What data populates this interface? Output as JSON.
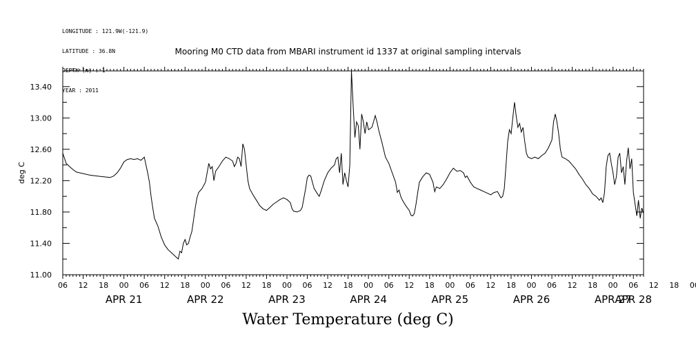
{
  "header": {
    "longitude": "LONGITUDE : 121.9W(-121.9)",
    "latitude": "LATITUDE : 36.8N",
    "depth": "DEPTH (m) : 1",
    "year": "YEAR : 2011"
  },
  "chart_data": {
    "type": "line",
    "title": "Mooring M0 CTD data from MBARI instrument id 1337 at original sampling intervals",
    "xlabel": "Water Temperature (deg C)",
    "ylabel": "deg C",
    "ylim": [
      11.0,
      13.6
    ],
    "xlim_hours": [
      0,
      171
    ],
    "y_ticks": [
      "11.00",
      "11.40",
      "11.80",
      "12.20",
      "12.60",
      "13.00",
      "13.40"
    ],
    "hour_ticks": [
      "06",
      "12",
      "18",
      "00",
      "06",
      "12",
      "18",
      "00",
      "06",
      "12",
      "18",
      "00",
      "06",
      "12",
      "18",
      "00",
      "06",
      "12",
      "18",
      "00",
      "06",
      "12",
      "18",
      "00",
      "06",
      "12",
      "18",
      "00",
      "06",
      "12",
      "18",
      "00"
    ],
    "day_labels": [
      "APR 21",
      "APR 22",
      "APR 23",
      "APR 24",
      "APR 25",
      "APR 26",
      "APR 27",
      "APR 28"
    ],
    "series": [
      {
        "points": [
          [
            0,
            12.55
          ],
          [
            1,
            12.42
          ],
          [
            2,
            12.38
          ],
          [
            3,
            12.34
          ],
          [
            4,
            12.31
          ],
          [
            5,
            12.3
          ],
          [
            6,
            12.29
          ],
          [
            8,
            12.27
          ],
          [
            10,
            12.26
          ],
          [
            12,
            12.25
          ],
          [
            14,
            12.24
          ],
          [
            15,
            12.26
          ],
          [
            16,
            12.3
          ],
          [
            17,
            12.36
          ],
          [
            18,
            12.44
          ],
          [
            19,
            12.47
          ],
          [
            20,
            12.48
          ],
          [
            21,
            12.47
          ],
          [
            22,
            12.48
          ],
          [
            23,
            12.46
          ],
          [
            24,
            12.5
          ],
          [
            24.5,
            12.4
          ],
          [
            25,
            12.3
          ],
          [
            25.5,
            12.18
          ],
          [
            26,
            12.0
          ],
          [
            26.5,
            11.85
          ],
          [
            27,
            11.72
          ],
          [
            28,
            11.62
          ],
          [
            29,
            11.48
          ],
          [
            30,
            11.38
          ],
          [
            31,
            11.32
          ],
          [
            32,
            11.28
          ],
          [
            33,
            11.24
          ],
          [
            34,
            11.2
          ],
          [
            34.5,
            11.3
          ],
          [
            35,
            11.28
          ],
          [
            35.5,
            11.4
          ],
          [
            36,
            11.45
          ],
          [
            36.5,
            11.38
          ],
          [
            37,
            11.4
          ],
          [
            37.5,
            11.48
          ],
          [
            38,
            11.55
          ],
          [
            38.5,
            11.7
          ],
          [
            39,
            11.85
          ],
          [
            39.5,
            11.98
          ],
          [
            40,
            12.05
          ],
          [
            41,
            12.1
          ],
          [
            42,
            12.18
          ],
          [
            42.5,
            12.3
          ],
          [
            43,
            12.42
          ],
          [
            43.5,
            12.35
          ],
          [
            44,
            12.38
          ],
          [
            44.5,
            12.2
          ],
          [
            45,
            12.32
          ],
          [
            46,
            12.38
          ],
          [
            47,
            12.45
          ],
          [
            48,
            12.5
          ],
          [
            49,
            12.48
          ],
          [
            50,
            12.45
          ],
          [
            50.5,
            12.38
          ],
          [
            51,
            12.42
          ],
          [
            51.5,
            12.5
          ],
          [
            52,
            12.48
          ],
          [
            52.5,
            12.38
          ],
          [
            53,
            12.67
          ],
          [
            53.5,
            12.6
          ],
          [
            54,
            12.4
          ],
          [
            54.5,
            12.2
          ],
          [
            55,
            12.1
          ],
          [
            56,
            12.02
          ],
          [
            57,
            11.95
          ],
          [
            58,
            11.88
          ],
          [
            59,
            11.84
          ],
          [
            60,
            11.82
          ],
          [
            61,
            11.86
          ],
          [
            62,
            11.9
          ],
          [
            63,
            11.93
          ],
          [
            64,
            11.96
          ],
          [
            65,
            11.98
          ],
          [
            66,
            11.96
          ],
          [
            67,
            11.92
          ],
          [
            67.5,
            11.84
          ],
          [
            68,
            11.81
          ],
          [
            69,
            11.8
          ],
          [
            70,
            11.82
          ],
          [
            70.5,
            11.86
          ],
          [
            71,
            11.98
          ],
          [
            71.5,
            12.1
          ],
          [
            72,
            12.24
          ],
          [
            72.5,
            12.27
          ],
          [
            73,
            12.26
          ],
          [
            73.5,
            12.18
          ],
          [
            74,
            12.1
          ],
          [
            75,
            12.03
          ],
          [
            75.5,
            12.0
          ],
          [
            76,
            12.06
          ],
          [
            77,
            12.2
          ],
          [
            78,
            12.3
          ],
          [
            79,
            12.36
          ],
          [
            80,
            12.4
          ],
          [
            80.5,
            12.48
          ],
          [
            81,
            12.5
          ],
          [
            81.5,
            12.3
          ],
          [
            82,
            12.55
          ],
          [
            82.5,
            12.15
          ],
          [
            83,
            12.3
          ],
          [
            83.5,
            12.2
          ],
          [
            84,
            12.12
          ],
          [
            84.5,
            12.4
          ],
          [
            85,
            13.6
          ],
          [
            85.5,
            13.15
          ],
          [
            86,
            12.75
          ],
          [
            86.5,
            12.95
          ],
          [
            87,
            12.9
          ],
          [
            87.5,
            12.6
          ],
          [
            88,
            13.05
          ],
          [
            88.5,
            12.95
          ],
          [
            89,
            12.8
          ],
          [
            89.5,
            12.95
          ],
          [
            90,
            12.85
          ],
          [
            91,
            12.88
          ],
          [
            91.5,
            12.95
          ],
          [
            92,
            13.03
          ],
          [
            92.5,
            12.95
          ],
          [
            93,
            12.85
          ],
          [
            94,
            12.68
          ],
          [
            95,
            12.5
          ],
          [
            96,
            12.42
          ],
          [
            97,
            12.3
          ],
          [
            98,
            12.18
          ],
          [
            98.5,
            12.05
          ],
          [
            99,
            12.08
          ],
          [
            99.5,
            12.0
          ],
          [
            100,
            11.95
          ],
          [
            101,
            11.88
          ],
          [
            102,
            11.82
          ],
          [
            102.5,
            11.76
          ],
          [
            103,
            11.75
          ],
          [
            103.5,
            11.78
          ],
          [
            104,
            11.9
          ],
          [
            104.5,
            12.05
          ],
          [
            105,
            12.18
          ],
          [
            106,
            12.25
          ],
          [
            107,
            12.3
          ],
          [
            108,
            12.28
          ],
          [
            109,
            12.18
          ],
          [
            109.5,
            12.06
          ],
          [
            110,
            12.12
          ],
          [
            111,
            12.1
          ],
          [
            112,
            12.15
          ],
          [
            113,
            12.22
          ],
          [
            114,
            12.3
          ],
          [
            115,
            12.36
          ],
          [
            116,
            12.32
          ],
          [
            117,
            12.33
          ],
          [
            118,
            12.3
          ],
          [
            118.5,
            12.24
          ],
          [
            119,
            12.26
          ],
          [
            120,
            12.18
          ],
          [
            121,
            12.12
          ],
          [
            122,
            12.1
          ],
          [
            123,
            12.08
          ],
          [
            124,
            12.06
          ],
          [
            125,
            12.04
          ],
          [
            126,
            12.02
          ],
          [
            127,
            12.05
          ],
          [
            128,
            12.06
          ],
          [
            128.5,
            12.02
          ],
          [
            129,
            11.98
          ],
          [
            129.5,
            12.0
          ],
          [
            130,
            12.1
          ],
          [
            130.5,
            12.4
          ],
          [
            131,
            12.7
          ],
          [
            131.5,
            12.85
          ],
          [
            132,
            12.8
          ],
          [
            132.5,
            13.0
          ],
          [
            133,
            13.2
          ],
          [
            133.5,
            13.02
          ],
          [
            134,
            12.88
          ],
          [
            134.5,
            12.93
          ],
          [
            135,
            12.82
          ],
          [
            135.5,
            12.88
          ],
          [
            136,
            12.7
          ],
          [
            136.5,
            12.55
          ],
          [
            137,
            12.5
          ],
          [
            138,
            12.48
          ],
          [
            139,
            12.5
          ],
          [
            140,
            12.48
          ],
          [
            141,
            12.52
          ],
          [
            142,
            12.55
          ],
          [
            143,
            12.62
          ],
          [
            144,
            12.72
          ],
          [
            144.5,
            12.95
          ],
          [
            145,
            13.05
          ],
          [
            145.5,
            12.95
          ],
          [
            146,
            12.8
          ],
          [
            146.5,
            12.6
          ],
          [
            147,
            12.5
          ],
          [
            148,
            12.48
          ],
          [
            149,
            12.45
          ],
          [
            150,
            12.4
          ],
          [
            151,
            12.35
          ],
          [
            152,
            12.28
          ],
          [
            153,
            12.22
          ],
          [
            154,
            12.15
          ],
          [
            155,
            12.1
          ],
          [
            156,
            12.03
          ],
          [
            157,
            12.0
          ],
          [
            158,
            11.95
          ],
          [
            158.5,
            11.98
          ],
          [
            159,
            11.92
          ],
          [
            159.5,
            12.05
          ],
          [
            160,
            12.38
          ],
          [
            160.5,
            12.52
          ],
          [
            161,
            12.55
          ],
          [
            161.5,
            12.42
          ],
          [
            162,
            12.3
          ],
          [
            162.5,
            12.15
          ],
          [
            163,
            12.25
          ],
          [
            163.5,
            12.5
          ],
          [
            164,
            12.55
          ],
          [
            164.5,
            12.3
          ],
          [
            165,
            12.38
          ],
          [
            165.5,
            12.15
          ],
          [
            166,
            12.45
          ],
          [
            166.5,
            12.62
          ],
          [
            167,
            12.35
          ],
          [
            167.5,
            12.48
          ],
          [
            168,
            12.05
          ],
          [
            168.5,
            11.9
          ],
          [
            169,
            11.75
          ],
          [
            169.5,
            11.95
          ],
          [
            170,
            11.72
          ],
          [
            170.5,
            11.85
          ],
          [
            171,
            11.78
          ]
        ]
      }
    ]
  }
}
